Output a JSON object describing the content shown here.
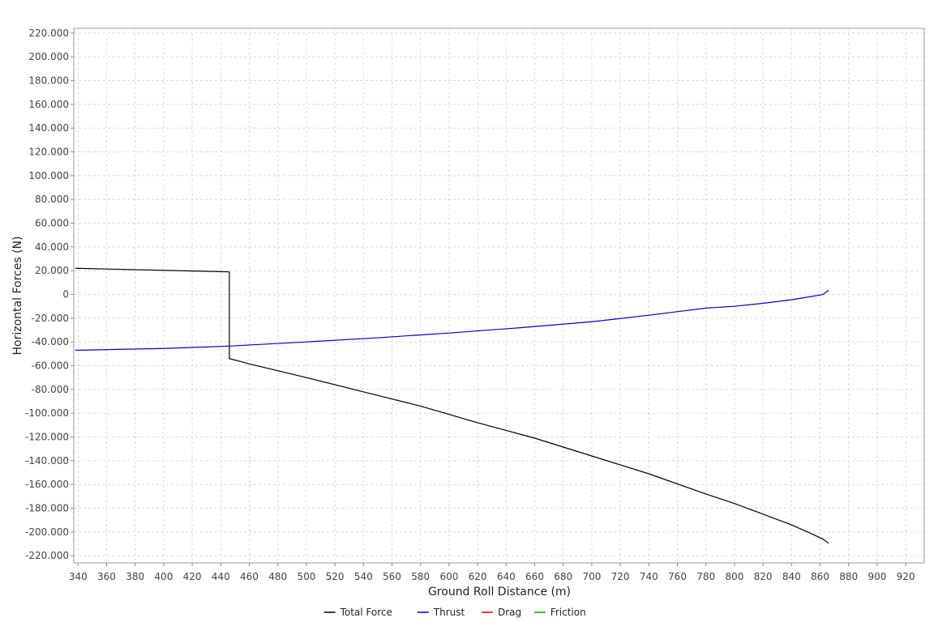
{
  "chart_data": {
    "type": "line",
    "xlabel": "Ground Roll Distance (m)",
    "ylabel": "Horizontal Forces (N)",
    "xlim": [
      337,
      933
    ],
    "ylim": [
      -226000,
      224000
    ],
    "x_ticks": [
      340,
      360,
      380,
      400,
      420,
      440,
      460,
      480,
      500,
      520,
      540,
      560,
      580,
      600,
      620,
      640,
      660,
      680,
      700,
      720,
      740,
      760,
      780,
      800,
      820,
      840,
      860,
      880,
      900,
      920
    ],
    "y_ticks": [
      {
        "value": 220000,
        "label": "220.000"
      },
      {
        "value": 200000,
        "label": "200.000"
      },
      {
        "value": 180000,
        "label": "180.000"
      },
      {
        "value": 160000,
        "label": "160.000"
      },
      {
        "value": 140000,
        "label": "140.000"
      },
      {
        "value": 120000,
        "label": "120.000"
      },
      {
        "value": 100000,
        "label": "100.000"
      },
      {
        "value": 80000,
        "label": "80.000"
      },
      {
        "value": 60000,
        "label": "60.000"
      },
      {
        "value": 40000,
        "label": "40.000"
      },
      {
        "value": 20000,
        "label": "20.000"
      },
      {
        "value": 0,
        "label": "0"
      },
      {
        "value": -20000,
        "label": "-20.000"
      },
      {
        "value": -40000,
        "label": "-40.000"
      },
      {
        "value": -60000,
        "label": "-60.000"
      },
      {
        "value": -80000,
        "label": "-80.000"
      },
      {
        "value": -100000,
        "label": "-100.000"
      },
      {
        "value": -120000,
        "label": "-120.000"
      },
      {
        "value": -140000,
        "label": "-140.000"
      },
      {
        "value": -160000,
        "label": "-160.000"
      },
      {
        "value": -180000,
        "label": "-180.000"
      },
      {
        "value": -200000,
        "label": "-200.000"
      },
      {
        "value": -220000,
        "label": "-220.000"
      }
    ],
    "grid": true,
    "legend_position": "bottom-center",
    "series": [
      {
        "name": "Total Force",
        "color": "#000000",
        "points": [
          [
            338,
            22000
          ],
          [
            446,
            19000
          ],
          [
            446,
            -54000
          ],
          [
            460,
            -58500
          ],
          [
            500,
            -70000
          ],
          [
            540,
            -82000
          ],
          [
            580,
            -94000
          ],
          [
            620,
            -108000
          ],
          [
            660,
            -121000
          ],
          [
            700,
            -136000
          ],
          [
            740,
            -151000
          ],
          [
            780,
            -168000
          ],
          [
            800,
            -176000
          ],
          [
            820,
            -185000
          ],
          [
            840,
            -194000
          ],
          [
            855,
            -202000
          ],
          [
            862,
            -206000
          ],
          [
            866,
            -209500
          ]
        ]
      },
      {
        "name": "Thrust",
        "color": "#0000cc",
        "points": [
          [
            338,
            -47000
          ],
          [
            400,
            -45500
          ],
          [
            446,
            -43500
          ],
          [
            500,
            -40000
          ],
          [
            550,
            -36500
          ],
          [
            600,
            -32500
          ],
          [
            650,
            -28000
          ],
          [
            700,
            -23000
          ],
          [
            740,
            -17500
          ],
          [
            780,
            -11500
          ],
          [
            800,
            -10000
          ],
          [
            820,
            -7500
          ],
          [
            840,
            -4500
          ],
          [
            855,
            -1500
          ],
          [
            862,
            0
          ],
          [
            866,
            3500
          ]
        ]
      },
      {
        "name": "Drag",
        "color": "#dd0000",
        "points": []
      },
      {
        "name": "Friction",
        "color": "#00aa00",
        "points": []
      }
    ]
  }
}
